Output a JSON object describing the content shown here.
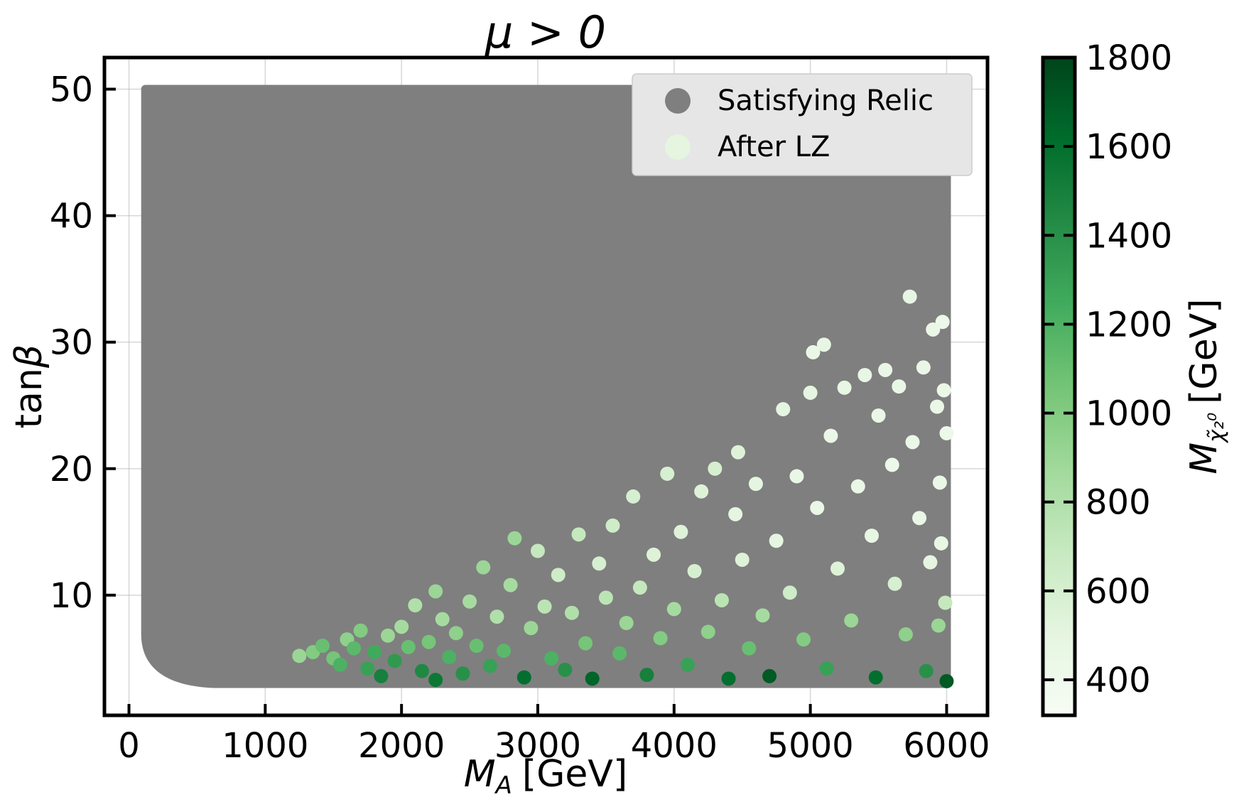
{
  "chart_data": {
    "type": "scatter",
    "title": "μ > 0",
    "xlabel": "M_A [GeV]",
    "xlabel_main": "M",
    "xlabel_sub": "A",
    "xlabel_unit": "[GeV]",
    "ylabel": "tanβ",
    "ylabel_main": "tan",
    "ylabel_symbol": "β",
    "xlim": [
      -180,
      6300
    ],
    "ylim": [
      0.5,
      52.5
    ],
    "xticks": [
      "0",
      "1000",
      "2000",
      "3000",
      "4000",
      "5000",
      "6000"
    ],
    "xtick_values": [
      0,
      1000,
      2000,
      3000,
      4000,
      5000,
      6000
    ],
    "yticks": [
      "10",
      "20",
      "30",
      "40",
      "50"
    ],
    "ytick_values": [
      10,
      20,
      30,
      40,
      50
    ],
    "grid": true,
    "legend_position": "top-right",
    "series": [
      {
        "name": "Satisfying Relic",
        "color": "#7f7f7f",
        "region": {
          "x_min": 100,
          "x_max": 6000,
          "y_min": 3,
          "y_max": 50
        },
        "note_form": "dense region filling M_A 100–6000, tanβ 3–50"
      },
      {
        "name": "After LZ",
        "color_scale": "Greens",
        "legend_color": "#e5f5e0",
        "colorbar_label": "M_χ̃₂⁰ [GeV]",
        "colorbar_main": "M",
        "colorbar_sub": "χ̃₂⁰",
        "colorbar_unit": "[GeV]",
        "colorbar_range": [
          320,
          1800
        ],
        "colorbar_ticks": [
          "400",
          "600",
          "800",
          "1000",
          "1200",
          "1400",
          "1600",
          "1800"
        ],
        "colorbar_tick_values": [
          400,
          600,
          800,
          1000,
          1200,
          1400,
          1600,
          1800
        ],
        "points": [
          [
            1250,
            5.2,
            900
          ],
          [
            1350,
            5.5,
            1000
          ],
          [
            1420,
            6.0,
            1100
          ],
          [
            1500,
            5.0,
            1050
          ],
          [
            1550,
            4.5,
            1200
          ],
          [
            1600,
            6.5,
            950
          ],
          [
            1650,
            5.8,
            1150
          ],
          [
            1700,
            7.2,
            1000
          ],
          [
            1750,
            4.2,
            1300
          ],
          [
            1800,
            5.5,
            1250
          ],
          [
            1850,
            3.6,
            1500
          ],
          [
            1900,
            6.8,
            900
          ],
          [
            1950,
            4.8,
            1350
          ],
          [
            2000,
            7.5,
            850
          ],
          [
            2050,
            5.9,
            1100
          ],
          [
            2100,
            9.2,
            800
          ],
          [
            2150,
            4.0,
            1450
          ],
          [
            2200,
            6.3,
            1050
          ],
          [
            2250,
            3.3,
            1550
          ],
          [
            2250,
            10.3,
            900
          ],
          [
            2300,
            8.1,
            850
          ],
          [
            2350,
            5.1,
            1200
          ],
          [
            2400,
            7.0,
            950
          ],
          [
            2450,
            3.8,
            1400
          ],
          [
            2500,
            9.5,
            850
          ],
          [
            2550,
            6.0,
            1100
          ],
          [
            2600,
            12.2,
            900
          ],
          [
            2650,
            4.4,
            1300
          ],
          [
            2700,
            8.3,
            800
          ],
          [
            2750,
            5.6,
            1150
          ],
          [
            2800,
            10.8,
            850
          ],
          [
            2830,
            14.5,
            900
          ],
          [
            2900,
            3.5,
            1600
          ],
          [
            2950,
            7.4,
            900
          ],
          [
            3000,
            13.5,
            700
          ],
          [
            3050,
            9.1,
            750
          ],
          [
            3100,
            5.0,
            1200
          ],
          [
            3150,
            11.6,
            650
          ],
          [
            3200,
            4.1,
            1400
          ],
          [
            3250,
            8.6,
            800
          ],
          [
            3300,
            14.8,
            700
          ],
          [
            3350,
            6.2,
            1050
          ],
          [
            3400,
            3.4,
            1650
          ],
          [
            3450,
            12.5,
            600
          ],
          [
            3500,
            9.8,
            750
          ],
          [
            3550,
            15.5,
            650
          ],
          [
            3600,
            5.4,
            1150
          ],
          [
            3650,
            7.8,
            900
          ],
          [
            3700,
            17.8,
            600
          ],
          [
            3750,
            10.6,
            700
          ],
          [
            3800,
            3.7,
            1500
          ],
          [
            3850,
            13.2,
            550
          ],
          [
            3900,
            6.6,
            1000
          ],
          [
            3950,
            19.6,
            600
          ],
          [
            4000,
            8.9,
            850
          ],
          [
            4050,
            15.0,
            550
          ],
          [
            4100,
            4.5,
            1300
          ],
          [
            4150,
            11.9,
            600
          ],
          [
            4200,
            18.2,
            550
          ],
          [
            4250,
            7.1,
            950
          ],
          [
            4300,
            20.0,
            600
          ],
          [
            4350,
            9.6,
            750
          ],
          [
            4400,
            3.4,
            1600
          ],
          [
            4450,
            16.4,
            500
          ],
          [
            4470,
            21.3,
            550
          ],
          [
            4500,
            12.8,
            550
          ],
          [
            4550,
            5.8,
            1100
          ],
          [
            4600,
            18.8,
            500
          ],
          [
            4650,
            8.4,
            850
          ],
          [
            4700,
            3.6,
            1700
          ],
          [
            4750,
            14.3,
            500
          ],
          [
            4800,
            24.7,
            500
          ],
          [
            4850,
            10.2,
            650
          ],
          [
            4900,
            19.4,
            450
          ],
          [
            4950,
            6.5,
            1000
          ],
          [
            5000,
            26.0,
            500
          ],
          [
            5020,
            29.2,
            450
          ],
          [
            5050,
            16.9,
            450
          ],
          [
            5100,
            29.8,
            480
          ],
          [
            5120,
            4.2,
            1300
          ],
          [
            5150,
            22.6,
            450
          ],
          [
            5200,
            12.1,
            550
          ],
          [
            5250,
            26.4,
            470
          ],
          [
            5300,
            8.0,
            900
          ],
          [
            5350,
            18.6,
            450
          ],
          [
            5400,
            27.4,
            470
          ],
          [
            5450,
            14.7,
            480
          ],
          [
            5480,
            3.5,
            1600
          ],
          [
            5500,
            24.2,
            450
          ],
          [
            5550,
            27.8,
            450
          ],
          [
            5600,
            20.3,
            430
          ],
          [
            5620,
            10.9,
            600
          ],
          [
            5650,
            26.5,
            450
          ],
          [
            5700,
            6.9,
            950
          ],
          [
            5730,
            33.6,
            480
          ],
          [
            5750,
            22.1,
            440
          ],
          [
            5800,
            16.1,
            450
          ],
          [
            5830,
            28.0,
            450
          ],
          [
            5850,
            4.0,
            1400
          ],
          [
            5880,
            12.6,
            500
          ],
          [
            5900,
            31.0,
            450
          ],
          [
            5930,
            24.9,
            450
          ],
          [
            5950,
            18.9,
            440
          ],
          [
            5970,
            31.6,
            430
          ],
          [
            5990,
            9.4,
            700
          ],
          [
            6000,
            3.2,
            1700
          ],
          [
            6000,
            22.8,
            430
          ],
          [
            5980,
            26.2,
            440
          ],
          [
            5960,
            14.1,
            470
          ],
          [
            5940,
            7.6,
            900
          ]
        ]
      }
    ]
  }
}
